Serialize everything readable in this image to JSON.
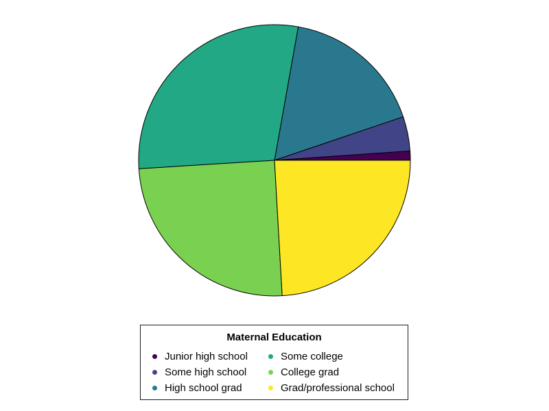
{
  "chart_data": {
    "type": "pie",
    "title": "",
    "legend_title": "Maternal Education",
    "legend_placement": "bottom",
    "categories": [
      "Junior high school",
      "Some high school",
      "High school grad",
      "Some college",
      "College grad",
      "Grad/professional school"
    ],
    "values": [
      1.1,
      4.1,
      17.0,
      28.8,
      24.9,
      24.1
    ],
    "colors": [
      "#440154",
      "#414487",
      "#2a788e",
      "#22a884",
      "#7ad151",
      "#fde725"
    ]
  }
}
